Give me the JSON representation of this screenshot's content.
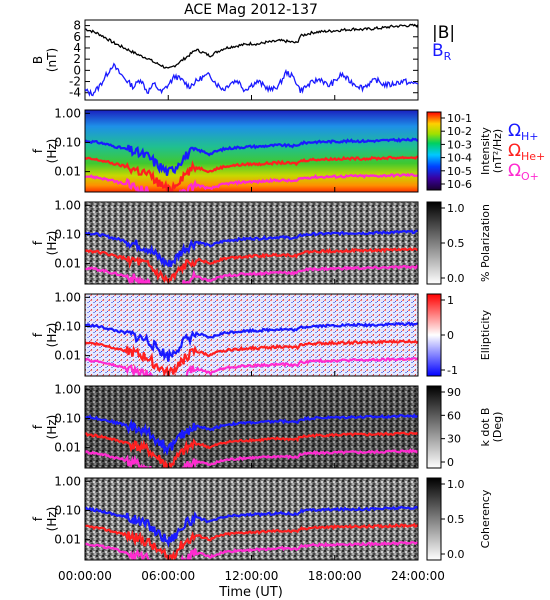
{
  "title": "ACE Mag 2012-137",
  "time_axis": {
    "label": "Time (UT)",
    "ticks": [
      "00:00:00",
      "06:00:00",
      "12:00:00",
      "18:00:00",
      "24:00:00"
    ],
    "range_hours": [
      0,
      24
    ]
  },
  "legend_field": {
    "b_total": "|B|",
    "b_radial": "B",
    "b_radial_sub": "R"
  },
  "legend_gyro": [
    {
      "symbol": "Ω",
      "sub": "H+",
      "color": "#1a1aff"
    },
    {
      "symbol": "Ω",
      "sub": "He+",
      "color": "#ff2020"
    },
    {
      "symbol": "Ω",
      "sub": "O+",
      "color": "#ff2bd0"
    }
  ],
  "colors": {
    "b_total": "#000000",
    "b_radial": "#1a1aff",
    "h_plus": "#1a1aff",
    "he_plus": "#ff2020",
    "o_plus": "#ff2bd0"
  },
  "chart_data": [
    {
      "type": "line",
      "title": "ACE Mag 2012-137",
      "ylabel": "B",
      "yunit": "(nT)",
      "ylim": [
        -5.3,
        9
      ],
      "yticks": [
        "8",
        "6",
        "4",
        "2",
        "0",
        "-2",
        "-4"
      ],
      "ytick_values": [
        8,
        6,
        4,
        2,
        0,
        -2,
        -4
      ],
      "series": [
        {
          "name": "|B|",
          "x": [
            0,
            0.5,
            1,
            1.5,
            2,
            2.5,
            3,
            3.5,
            4,
            4.5,
            5,
            5.5,
            6,
            6.5,
            7,
            7.5,
            8,
            8.5,
            9,
            9.5,
            10,
            10.5,
            11,
            11.5,
            12,
            12.5,
            13,
            13.5,
            14,
            14.5,
            15,
            15.3,
            15.5,
            16,
            16.5,
            17,
            17.5,
            18,
            18.5,
            19,
            19.5,
            20,
            20.5,
            21,
            21.5,
            22,
            22.5,
            23,
            23.5,
            24
          ],
          "values": [
            7.4,
            7.0,
            6.5,
            5.8,
            5.0,
            4.4,
            3.8,
            3.2,
            2.6,
            2.2,
            1.4,
            0.9,
            0.2,
            0.9,
            1.8,
            2.7,
            3.7,
            3.2,
            2.6,
            3.3,
            3.9,
            4.2,
            4.4,
            4.6,
            4.8,
            4.7,
            5.0,
            5.1,
            5.3,
            5.2,
            5.0,
            4.9,
            6.1,
            6.5,
            6.8,
            6.9,
            7.0,
            7.1,
            7.2,
            7.3,
            7.4,
            7.3,
            7.4,
            7.5,
            7.6,
            7.8,
            7.9,
            8.0,
            8.0,
            8.0
          ]
        },
        {
          "name": "B",
          "x": [
            0,
            0.5,
            1,
            1.5,
            2,
            2.5,
            3,
            3.5,
            4,
            4.5,
            5,
            5.5,
            6,
            6.5,
            7,
            7.5,
            8,
            8.5,
            9,
            9.5,
            10,
            10.5,
            11,
            11.5,
            12,
            12.5,
            13,
            13.5,
            14,
            14.5,
            15,
            15.3,
            15.5,
            16,
            16.5,
            17,
            17.5,
            18,
            18.5,
            19,
            19.5,
            20,
            20.5,
            21,
            21.5,
            22,
            22.5,
            23,
            23.5,
            24
          ],
          "values": [
            -3.6,
            -4.2,
            -3.0,
            -1.0,
            1.0,
            -0.5,
            -1.8,
            -3.0,
            -1.5,
            -3.9,
            -2.4,
            -4.0,
            -2.6,
            -1.0,
            -1.8,
            -2.9,
            -2.0,
            -1.2,
            -0.8,
            -2.5,
            -3.4,
            -2.2,
            -1.8,
            -3.5,
            -2.6,
            -2.0,
            -3.0,
            -3.5,
            -2.6,
            -0.3,
            -1.2,
            -2.4,
            -3.6,
            -2.8,
            -2.0,
            -1.5,
            -2.8,
            -2.0,
            -0.7,
            -1.8,
            -2.5,
            -3.1,
            -2.3,
            -1.7,
            -2.5,
            -2.6,
            -2.2,
            -1.9,
            -2.4,
            -2.2
          ]
        }
      ]
    },
    {
      "type": "heatmap",
      "ylabel": "f",
      "yunit": "(Hz)",
      "scale": "log",
      "ylim": [
        0.002,
        1.3
      ],
      "yticks": [
        "1.00",
        "0.10",
        "0.01"
      ],
      "ytick_values": [
        1,
        0.1,
        0.01
      ],
      "colorbar": {
        "label": "Intensity",
        "unit": "(nT²/Hz)",
        "ticks": [
          "10-1",
          "10-2",
          "10-3",
          "10-4",
          "10-5",
          "10-6"
        ],
        "scale": "rainbow"
      }
    },
    {
      "type": "heatmap",
      "ylabel": "f",
      "yunit": "(Hz)",
      "scale": "log",
      "ylim": [
        0.002,
        1.3
      ],
      "yticks": [
        "1.00",
        "0.10",
        "0.01"
      ],
      "ytick_values": [
        1,
        0.1,
        0.01
      ],
      "colorbar": {
        "label": "% Polarization",
        "ticks": [
          "1.0",
          "0.5",
          "0.0"
        ],
        "scale": "gray"
      }
    },
    {
      "type": "heatmap",
      "ylabel": "f",
      "yunit": "(Hz)",
      "scale": "log",
      "ylim": [
        0.002,
        1.3
      ],
      "yticks": [
        "1.00",
        "0.10",
        "0.01"
      ],
      "ytick_values": [
        1,
        0.1,
        0.01
      ],
      "colorbar": {
        "label": "Ellipticity",
        "ticks": [
          "1",
          "0",
          "-1"
        ],
        "scale": "red-white-blue"
      }
    },
    {
      "type": "heatmap",
      "ylabel": "f",
      "yunit": "(Hz)",
      "scale": "log",
      "ylim": [
        0.002,
        1.3
      ],
      "yticks": [
        "1.00",
        "0.10",
        "0.01"
      ],
      "ytick_values": [
        1,
        0.1,
        0.01
      ],
      "colorbar": {
        "label": "k dot B",
        "unit": "(Deg)",
        "ticks": [
          "90",
          "60",
          "30",
          "0"
        ],
        "scale": "gray"
      }
    },
    {
      "type": "heatmap",
      "ylabel": "f",
      "yunit": "(Hz)",
      "scale": "log",
      "ylim": [
        0.002,
        1.3
      ],
      "yticks": [
        "1.00",
        "0.10",
        "0.01"
      ],
      "ytick_values": [
        1,
        0.1,
        0.01
      ],
      "colorbar": {
        "label": "Coherency",
        "ticks": [
          "1.0",
          "0.5",
          "0.0"
        ],
        "scale": "gray"
      }
    }
  ],
  "gyrofrequency": {
    "x": [
      0,
      0.5,
      1,
      1.5,
      2,
      2.5,
      3,
      3.5,
      4,
      4.5,
      5,
      5.5,
      6,
      6.5,
      7,
      7.5,
      8,
      8.5,
      9,
      9.5,
      10,
      10.5,
      11,
      11.5,
      12,
      12.5,
      13,
      13.5,
      14,
      14.5,
      15,
      15.3,
      15.5,
      16,
      16.5,
      17,
      17.5,
      18,
      18.5,
      19,
      19.5,
      20,
      20.5,
      21,
      21.5,
      22,
      22.5,
      23,
      23.5,
      24
    ],
    "h_plus": [
      0.113,
      0.107,
      0.099,
      0.088,
      0.076,
      0.067,
      0.058,
      0.049,
      0.04,
      0.034,
      0.021,
      0.014,
      0.009,
      0.014,
      0.027,
      0.041,
      0.056,
      0.049,
      0.04,
      0.05,
      0.059,
      0.064,
      0.067,
      0.07,
      0.073,
      0.072,
      0.076,
      0.078,
      0.081,
      0.079,
      0.076,
      0.075,
      0.093,
      0.099,
      0.104,
      0.105,
      0.107,
      0.108,
      0.11,
      0.111,
      0.113,
      0.111,
      0.113,
      0.114,
      0.116,
      0.119,
      0.12,
      0.122,
      0.122,
      0.122
    ],
    "he_plus_ratio": 0.25,
    "o_plus_ratio": 0.0625
  }
}
